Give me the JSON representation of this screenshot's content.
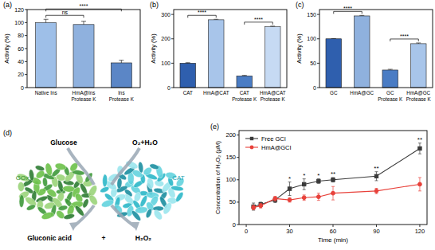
{
  "chart_data": [
    {
      "type": "bar",
      "title": "(a)",
      "ylabel": "Activity (%)",
      "categories": [
        "Native Ins",
        "HmA@Ins\nProtease K",
        "Ins\nProtease K"
      ],
      "values": [
        100,
        97,
        38
      ],
      "errors": [
        5,
        5,
        4
      ],
      "colors": [
        "#9ebfe8",
        "#8fb1de",
        "#5b86c6"
      ],
      "ylim": [
        0,
        120
      ],
      "yticks": [
        0,
        20,
        40,
        60,
        80,
        100,
        120
      ],
      "annotations": [
        {
          "text": "ns",
          "between": [
            "Native Ins",
            "HmA@Ins\nProtease K"
          ]
        },
        {
          "text": "****",
          "between": [
            "Native Ins",
            "Ins\nProtease K"
          ]
        }
      ]
    },
    {
      "type": "bar",
      "title": "(b)",
      "ylabel": "Activity (%)",
      "categories": [
        "CAT",
        "HmA@CAT",
        "CAT\nProtease K",
        "HmA@CAT\nProtease K"
      ],
      "values": [
        100,
        278,
        48,
        250
      ],
      "errors": [
        2,
        2,
        2,
        2
      ],
      "colors": [
        "#2f5fae",
        "#a8c5ea",
        "#4a7cc4",
        "#c6daf3"
      ],
      "ylim": [
        0,
        320
      ],
      "yticks": [
        0,
        100,
        200,
        300
      ],
      "annotations": [
        {
          "text": "****",
          "between": [
            "CAT",
            "HmA@CAT"
          ]
        },
        {
          "text": "****",
          "between": [
            "CAT\nProtease K",
            "HmA@CAT\nProtease K"
          ]
        }
      ]
    },
    {
      "type": "bar",
      "title": "(c)",
      "ylabel": "Activity (%)",
      "categories": [
        "GC",
        "HmA@GC",
        "GC\nProtease K",
        "HmA@GC\nProtease K"
      ],
      "values": [
        100,
        147,
        36,
        90
      ],
      "errors": [
        0.5,
        1,
        1.5,
        1.5
      ],
      "colors": [
        "#2f5fae",
        "#8fb1de",
        "#4a7cc4",
        "#a8c5ea"
      ],
      "ylim": [
        0,
        160
      ],
      "yticks": [
        0,
        50,
        100,
        150
      ],
      "annotations": [
        {
          "text": "****",
          "between": [
            "GC",
            "HmA@GC"
          ]
        },
        {
          "text": "****",
          "between": [
            "GC\nProtease K",
            "HmA@GC\nProtease K"
          ]
        }
      ]
    },
    {
      "type": "line",
      "title": "(e)",
      "xlabel": "Time (min)",
      "ylabel": "Concentration of H₂O₂ (μM)",
      "x": [
        5,
        10,
        20,
        30,
        40,
        50,
        60,
        90,
        120
      ],
      "series": [
        {
          "name": "Free GCI",
          "color": "#3a3a3a",
          "marker": "square",
          "values": [
            40,
            45,
            55,
            80,
            90,
            97,
            100,
            108,
            170
          ],
          "errors": [
            8,
            5,
            6,
            15,
            12,
            5,
            5,
            10,
            12
          ]
        },
        {
          "name": "HmA@GCI",
          "color": "#e8413a",
          "marker": "circle",
          "values": [
            38,
            42,
            58,
            55,
            60,
            62,
            70,
            75,
            90
          ],
          "errors": [
            5,
            5,
            5,
            5,
            6,
            8,
            15,
            6,
            15
          ]
        }
      ],
      "xlim": [
        -5,
        125
      ],
      "xticks": [
        0,
        30,
        60,
        90,
        120
      ],
      "ylim": [
        0,
        210
      ],
      "yticks": [
        0,
        50,
        100,
        150,
        200
      ],
      "legend": "upper left",
      "annotations": [
        {
          "text": "*",
          "x": 30
        },
        {
          "text": "*",
          "x": 40
        },
        {
          "text": "*",
          "x": 50
        },
        {
          "text": "**",
          "x": 60
        },
        {
          "text": "**",
          "x": 90
        },
        {
          "text": "**",
          "x": 120
        }
      ]
    }
  ],
  "diagram": {
    "title": "(d)",
    "labels": {
      "substrate": "Glucose",
      "cosubstrate": "O₂+H₂O",
      "enzyme1": "GOx",
      "enzyme2": "CAT",
      "product1": "Gluconic acid",
      "plus": "+",
      "product2": "H₂O₂"
    }
  }
}
